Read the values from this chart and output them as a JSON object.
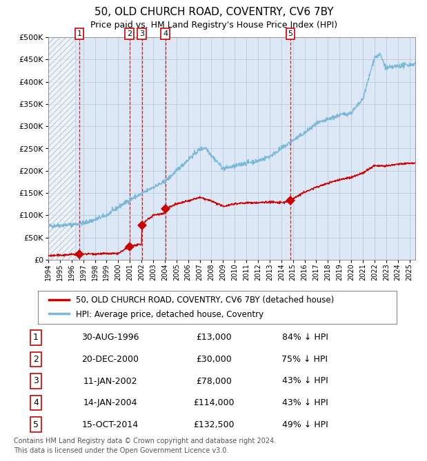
{
  "title": "50, OLD CHURCH ROAD, COVENTRY, CV6 7BY",
  "subtitle": "Price paid vs. HM Land Registry's House Price Index (HPI)",
  "hpi_label": "HPI: Average price, detached house, Coventry",
  "price_label": "50, OLD CHURCH ROAD, COVENTRY, CV6 7BY (detached house)",
  "footer": "Contains HM Land Registry data © Crown copyright and database right 2024.\nThis data is licensed under the Open Government Licence v3.0.",
  "transactions": [
    {
      "num": 1,
      "date": "30-AUG-1996",
      "year": 1996.67,
      "price": 13000,
      "pct": "84% ↓ HPI"
    },
    {
      "num": 2,
      "date": "20-DEC-2000",
      "year": 2000.97,
      "price": 30000,
      "pct": "75% ↓ HPI"
    },
    {
      "num": 3,
      "date": "11-JAN-2002",
      "year": 2002.03,
      "price": 78000,
      "pct": "43% ↓ HPI"
    },
    {
      "num": 4,
      "date": "14-JAN-2004",
      "year": 2004.04,
      "price": 114000,
      "pct": "43% ↓ HPI"
    },
    {
      "num": 5,
      "date": "15-OCT-2014",
      "year": 2014.79,
      "price": 132500,
      "pct": "49% ↓ HPI"
    }
  ],
  "hpi_color": "#7ab8d9",
  "price_color": "#cc0000",
  "plot_bg": "#dce8f5",
  "hatch_color": "#b8c8d8",
  "grid_color": "#b8c8d8",
  "vline_color": "#cc0000",
  "ylim": [
    0,
    500000
  ],
  "yticks": [
    0,
    50000,
    100000,
    150000,
    200000,
    250000,
    300000,
    350000,
    400000,
    450000,
    500000
  ],
  "xmin": 1994,
  "xmax": 2025.5
}
